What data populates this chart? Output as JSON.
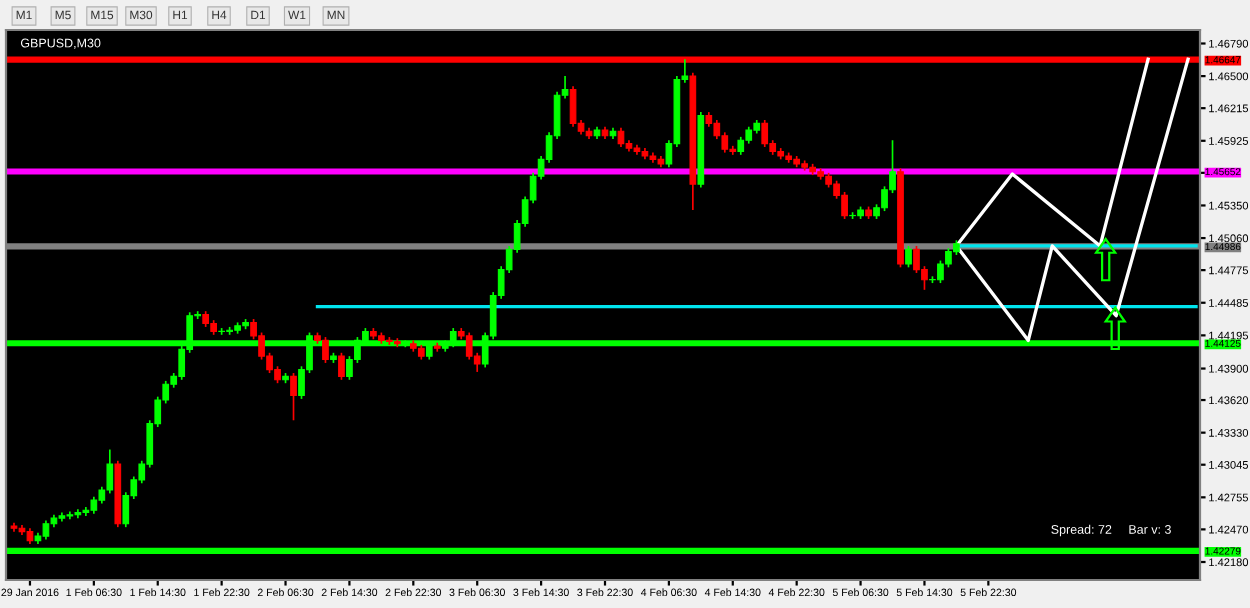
{
  "chart_data": {
    "type": "candlestick",
    "title": "GBPUSD,M30",
    "categories": [
      null,
      null,
      "29 Jan 2016",
      null,
      null,
      null,
      null,
      null,
      null,
      null,
      "1 Feb 06:30",
      null,
      null,
      null,
      null,
      null,
      null,
      null,
      "1 Feb 14:30",
      null,
      null,
      null,
      null,
      null,
      null,
      null,
      "1 Feb 22:30",
      null,
      null,
      null,
      null,
      null,
      null,
      null,
      "2 Feb 06:30",
      null,
      null,
      null,
      null,
      null,
      null,
      null,
      "2 Feb 14:30",
      null,
      null,
      null,
      null,
      null,
      null,
      null,
      "2 Feb 22:30",
      null,
      null,
      null,
      null,
      null,
      null,
      null,
      "3 Feb 06:30",
      null,
      null,
      null,
      null,
      null,
      null,
      null,
      "3 Feb 14:30",
      null,
      null,
      null,
      null,
      null,
      null,
      null,
      "3 Feb 22:30",
      null,
      null,
      null,
      null,
      null,
      null,
      null,
      "4 Feb 06:30",
      null,
      null,
      null,
      null,
      null,
      null,
      null,
      "4 Feb 14:30",
      null,
      null,
      null,
      null,
      null,
      null,
      null,
      "4 Feb 22:30",
      null,
      null,
      null,
      null,
      null,
      null,
      null,
      "5 Feb 06:30",
      null,
      null,
      null,
      null,
      null,
      null,
      null,
      "5 Feb 14:30",
      null,
      null,
      null,
      null,
      null,
      null,
      null,
      "5 Feb 22:30",
      null,
      null,
      null,
      null,
      null,
      null,
      null,
      null,
      null,
      null,
      null,
      null,
      null,
      null,
      null,
      null,
      null,
      null,
      null,
      null,
      null,
      null,
      null,
      null,
      null,
      null
    ],
    "ohlc": [
      [
        1.425,
        1.4253,
        1.4245,
        1.4248
      ],
      [
        1.4248,
        1.4251,
        1.4242,
        1.4245
      ],
      [
        1.4245,
        1.4248,
        1.4234,
        1.4237
      ],
      [
        1.4237,
        1.4244,
        1.4234,
        1.4241
      ],
      [
        1.4241,
        1.4255,
        1.4238,
        1.4252
      ],
      [
        1.4252,
        1.426,
        1.4249,
        1.4257
      ],
      [
        1.4257,
        1.4262,
        1.4254,
        1.4259
      ],
      [
        1.4259,
        1.4263,
        1.4256,
        1.426
      ],
      [
        1.426,
        1.4265,
        1.4257,
        1.4262
      ],
      [
        1.4262,
        1.4267,
        1.4259,
        1.4264
      ],
      [
        1.4264,
        1.4276,
        1.4261,
        1.4273
      ],
      [
        1.4273,
        1.4285,
        1.427,
        1.4282
      ],
      [
        1.4282,
        1.4318,
        1.4279,
        1.4305
      ],
      [
        1.4305,
        1.4308,
        1.4249,
        1.4252
      ],
      [
        1.4252,
        1.428,
        1.4249,
        1.4277
      ],
      [
        1.4277,
        1.4294,
        1.4274,
        1.4291
      ],
      [
        1.4291,
        1.4308,
        1.4288,
        1.4305
      ],
      [
        1.4305,
        1.4344,
        1.4302,
        1.4341
      ],
      [
        1.4341,
        1.4365,
        1.4338,
        1.4362
      ],
      [
        1.4362,
        1.4379,
        1.4359,
        1.4376
      ],
      [
        1.4376,
        1.4386,
        1.4373,
        1.4383
      ],
      [
        1.4383,
        1.441,
        1.438,
        1.4407
      ],
      [
        1.4407,
        1.444,
        1.4404,
        1.4437
      ],
      [
        1.4437,
        1.4441,
        1.4434,
        1.4438
      ],
      [
        1.4438,
        1.4441,
        1.4427,
        1.443
      ],
      [
        1.443,
        1.4433,
        1.442,
        1.4423
      ],
      [
        1.4423,
        1.4426,
        1.442,
        1.4423
      ],
      [
        1.4423,
        1.4427,
        1.442,
        1.4424
      ],
      [
        1.4424,
        1.4431,
        1.4421,
        1.4428
      ],
      [
        1.4428,
        1.4434,
        1.4425,
        1.4431
      ],
      [
        1.4431,
        1.4434,
        1.4416,
        1.4419
      ],
      [
        1.4419,
        1.4422,
        1.4398,
        1.4401
      ],
      [
        1.4401,
        1.4404,
        1.4386,
        1.4389
      ],
      [
        1.4389,
        1.4392,
        1.4377,
        1.438
      ],
      [
        1.438,
        1.4386,
        1.4377,
        1.4383
      ],
      [
        1.4383,
        1.4386,
        1.4344,
        1.4366
      ],
      [
        1.4366,
        1.4392,
        1.4363,
        1.4389
      ],
      [
        1.4389,
        1.4422,
        1.4386,
        1.4419
      ],
      [
        1.4419,
        1.4422,
        1.4412,
        1.4415
      ],
      [
        1.4415,
        1.4418,
        1.4395,
        1.4398
      ],
      [
        1.4398,
        1.4404,
        1.4395,
        1.4401
      ],
      [
        1.4401,
        1.4404,
        1.438,
        1.4383
      ],
      [
        1.4383,
        1.4401,
        1.438,
        1.4398
      ],
      [
        1.4398,
        1.4418,
        1.4395,
        1.4415
      ],
      [
        1.4415,
        1.4426,
        1.4412,
        1.4423
      ],
      [
        1.4423,
        1.4426,
        1.4416,
        1.4419
      ],
      [
        1.4419,
        1.4422,
        1.4412,
        1.4415
      ],
      [
        1.4415,
        1.4418,
        1.4411,
        1.4414
      ],
      [
        1.4414,
        1.4417,
        1.4409,
        1.4412
      ],
      [
        1.4412,
        1.4415,
        1.4409,
        1.4412
      ],
      [
        1.4412,
        1.4415,
        1.4405,
        1.4408
      ],
      [
        1.4408,
        1.4411,
        1.4398,
        1.4401
      ],
      [
        1.4401,
        1.4413,
        1.4398,
        1.441
      ],
      [
        1.441,
        1.4413,
        1.4405,
        1.4408
      ],
      [
        1.4408,
        1.4415,
        1.4405,
        1.4412
      ],
      [
        1.4412,
        1.4426,
        1.4409,
        1.4423
      ],
      [
        1.4423,
        1.4426,
        1.4416,
        1.4419
      ],
      [
        1.4419,
        1.4422,
        1.4398,
        1.4401
      ],
      [
        1.4401,
        1.4404,
        1.4387,
        1.4394
      ],
      [
        1.4394,
        1.4422,
        1.4391,
        1.4419
      ],
      [
        1.4419,
        1.4458,
        1.4416,
        1.4455
      ],
      [
        1.4455,
        1.4481,
        1.4452,
        1.4478
      ],
      [
        1.4478,
        1.4499,
        1.4475,
        1.4496
      ],
      [
        1.4496,
        1.4522,
        1.4493,
        1.4519
      ],
      [
        1.4519,
        1.4543,
        1.4516,
        1.454
      ],
      [
        1.454,
        1.4564,
        1.4537,
        1.4561
      ],
      [
        1.4561,
        1.4579,
        1.4558,
        1.4576
      ],
      [
        1.4576,
        1.46,
        1.4573,
        1.4597
      ],
      [
        1.4597,
        1.4636,
        1.4594,
        1.4633
      ],
      [
        1.4633,
        1.465,
        1.463,
        1.4638
      ],
      [
        1.4638,
        1.4641,
        1.4605,
        1.4608
      ],
      [
        1.4608,
        1.4611,
        1.4598,
        1.4601
      ],
      [
        1.4601,
        1.4604,
        1.4594,
        1.4597
      ],
      [
        1.4597,
        1.4605,
        1.4594,
        1.4602
      ],
      [
        1.4602,
        1.4605,
        1.4594,
        1.4597
      ],
      [
        1.4597,
        1.4604,
        1.4594,
        1.4601
      ],
      [
        1.4601,
        1.4604,
        1.4587,
        1.459
      ],
      [
        1.459,
        1.4593,
        1.4583,
        1.4586
      ],
      [
        1.4586,
        1.4589,
        1.458,
        1.4583
      ],
      [
        1.4583,
        1.4586,
        1.4576,
        1.4579
      ],
      [
        1.4579,
        1.4582,
        1.4573,
        1.4576
      ],
      [
        1.4576,
        1.4579,
        1.4569,
        1.4572
      ],
      [
        1.4572,
        1.4593,
        1.4569,
        1.459
      ],
      [
        1.459,
        1.465,
        1.4587,
        1.4647
      ],
      [
        1.4647,
        1.4665,
        1.4644,
        1.465
      ],
      [
        1.465,
        1.4653,
        1.4531,
        1.4554
      ],
      [
        1.4554,
        1.4618,
        1.4551,
        1.4615
      ],
      [
        1.4615,
        1.4618,
        1.4605,
        1.4608
      ],
      [
        1.4608,
        1.4611,
        1.4594,
        1.4597
      ],
      [
        1.4597,
        1.46,
        1.4582,
        1.4585
      ],
      [
        1.4585,
        1.4588,
        1.458,
        1.4583
      ],
      [
        1.4583,
        1.4596,
        1.458,
        1.4593
      ],
      [
        1.4593,
        1.4605,
        1.459,
        1.4602
      ],
      [
        1.4602,
        1.4611,
        1.4599,
        1.4608
      ],
      [
        1.4608,
        1.4611,
        1.4587,
        1.459
      ],
      [
        1.459,
        1.4593,
        1.458,
        1.4583
      ],
      [
        1.4583,
        1.4586,
        1.4576,
        1.4579
      ],
      [
        1.4579,
        1.4582,
        1.4573,
        1.4576
      ],
      [
        1.4576,
        1.4579,
        1.4569,
        1.4572
      ],
      [
        1.4572,
        1.4575,
        1.4566,
        1.4569
      ],
      [
        1.4569,
        1.4572,
        1.4562,
        1.4565
      ],
      [
        1.4565,
        1.4568,
        1.4558,
        1.4561
      ],
      [
        1.4561,
        1.4564,
        1.4551,
        1.4554
      ],
      [
        1.4554,
        1.4557,
        1.4541,
        1.4544
      ],
      [
        1.4544,
        1.4547,
        1.4523,
        1.4526
      ],
      [
        1.4526,
        1.4529,
        1.4523,
        1.4526
      ],
      [
        1.4526,
        1.4534,
        1.4523,
        1.4531
      ],
      [
        1.4531,
        1.4534,
        1.4523,
        1.4526
      ],
      [
        1.4526,
        1.4536,
        1.4523,
        1.4533
      ],
      [
        1.4533,
        1.4552,
        1.453,
        1.4549
      ],
      [
        1.4549,
        1.4593,
        1.4546,
        1.4565
      ],
      [
        1.4565,
        1.4568,
        1.448,
        1.4483
      ],
      [
        1.4483,
        1.4499,
        1.448,
        1.4496
      ],
      [
        1.4496,
        1.4499,
        1.4475,
        1.4478
      ],
      [
        1.4478,
        1.4481,
        1.446,
        1.4469
      ],
      [
        1.4469,
        1.4472,
        1.4466,
        1.4469
      ],
      [
        1.4469,
        1.4486,
        1.4466,
        1.4483
      ],
      [
        1.4483,
        1.4497,
        1.448,
        1.4494
      ],
      [
        1.4494,
        1.4504,
        1.4491,
        1.4501
      ],
      null,
      null,
      null,
      null,
      null,
      null,
      null,
      null,
      null,
      null,
      null,
      null,
      null,
      null,
      null,
      null,
      null,
      null,
      null,
      null,
      null,
      null,
      null,
      null,
      null,
      null,
      null,
      null,
      null,
      null
    ],
    "colors": [
      "#ff0000",
      "#ff0000",
      "#ff0000",
      "#00ff00",
      "#00ff00",
      "#00ff00",
      "#00ff00",
      "#00ff00",
      "#00ff00",
      "#00ff00",
      "#00ff00",
      "#00ff00",
      "#00ff00",
      "#ff0000",
      "#00ff00",
      "#00ff00",
      "#00ff00",
      "#00ff00",
      "#00ff00",
      "#00ff00",
      "#00ff00",
      "#00ff00",
      "#00ff00",
      "#00ff00",
      "#ff0000",
      "#ff0000",
      "#00ff00",
      "#00ff00",
      "#00ff00",
      "#00ff00",
      "#ff0000",
      "#ff0000",
      "#ff0000",
      "#ff0000",
      "#00ff00",
      "#ff0000",
      "#00ff00",
      "#00ff00",
      "#ff0000",
      "#ff0000",
      "#00ff00",
      "#ff0000",
      "#00ff00",
      "#00ff00",
      "#00ff00",
      "#ff0000",
      "#ff0000",
      "#ff0000",
      "#ff0000",
      "#00ff00",
      "#ff0000",
      "#ff0000",
      "#00ff00",
      "#ff0000",
      "#00ff00",
      "#00ff00",
      "#ff0000",
      "#ff0000",
      "#ff0000",
      "#00ff00",
      "#00ff00",
      "#00ff00",
      "#00ff00",
      "#00ff00",
      "#00ff00",
      "#00ff00",
      "#00ff00",
      "#00ff00",
      "#00ff00",
      "#00ff00",
      "#ff0000",
      "#ff0000",
      "#ff0000",
      "#00ff00",
      "#ff0000",
      "#00ff00",
      "#ff0000",
      "#ff0000",
      "#ff0000",
      "#ff0000",
      "#ff0000",
      "#ff0000",
      "#00ff00",
      "#00ff00",
      "#00ff00",
      "#ff0000",
      "#00ff00",
      "#ff0000",
      "#ff0000",
      "#ff0000",
      "#ff0000",
      "#00ff00",
      "#00ff00",
      "#00ff00",
      "#ff0000",
      "#ff0000",
      "#ff0000",
      "#ff0000",
      "#ff0000",
      "#ff0000",
      "#ff0000",
      "#ff0000",
      "#ff0000",
      "#ff0000",
      "#ff0000",
      "#00ff00",
      "#00ff00",
      "#ff0000",
      "#00ff00",
      "#00ff00",
      "#00ff00",
      "#ff0000",
      "#00ff00",
      "#ff0000",
      "#ff0000",
      "#00ff00",
      "#00ff00",
      "#00ff00",
      "#00ff00",
      null,
      null,
      null,
      null,
      null,
      null,
      null,
      null,
      null,
      null,
      null,
      null,
      null,
      null,
      null,
      null,
      null,
      null,
      null,
      null,
      null,
      null,
      null,
      null,
      null,
      null,
      null,
      null,
      null,
      null
    ],
    "series": [
      {
        "type": "line",
        "color": "#00e5ee",
        "values": [
          null,
          null,
          null,
          null,
          null,
          null,
          null,
          null,
          null,
          null,
          null,
          null,
          null,
          null,
          null,
          null,
          null,
          null,
          null,
          null,
          null,
          null,
          null,
          null,
          null,
          null,
          null,
          null,
          null,
          null,
          null,
          null,
          null,
          null,
          null,
          null,
          null,
          null,
          1.4445,
          null,
          null,
          null,
          null,
          null,
          null,
          null,
          null,
          null,
          null,
          null,
          null,
          null,
          null,
          null,
          null,
          null,
          null,
          null,
          null,
          null,
          null,
          null,
          null,
          null,
          null,
          null,
          null,
          null,
          null,
          null,
          null,
          null,
          null,
          null,
          null,
          null,
          null,
          null,
          null,
          null,
          null,
          null,
          null,
          null,
          null,
          null,
          null,
          null,
          null,
          null,
          null,
          null,
          null,
          null,
          null,
          null,
          null,
          null,
          null,
          null,
          null,
          null,
          null,
          null,
          null,
          null,
          null,
          null,
          null,
          null,
          null,
          null,
          null,
          null,
          null,
          null,
          null,
          null,
          null,
          null,
          null,
          null,
          null,
          null,
          null,
          null,
          null,
          null,
          null,
          null,
          null,
          null,
          null,
          null,
          null,
          null,
          null,
          null,
          null,
          null,
          null,
          null,
          null,
          null,
          null,
          null,
          null,
          null,
          1.4445
        ]
      },
      {
        "type": "line",
        "color": "#00e5ee",
        "values": [
          null,
          null,
          null,
          null,
          null,
          null,
          null,
          null,
          null,
          null,
          null,
          null,
          null,
          null,
          null,
          null,
          null,
          null,
          null,
          null,
          null,
          null,
          null,
          null,
          null,
          null,
          null,
          null,
          null,
          null,
          null,
          null,
          null,
          null,
          null,
          null,
          null,
          null,
          null,
          null,
          null,
          null,
          null,
          null,
          null,
          null,
          null,
          null,
          null,
          null,
          null,
          null,
          null,
          null,
          null,
          null,
          null,
          null,
          null,
          null,
          null,
          null,
          null,
          null,
          null,
          null,
          null,
          null,
          null,
          null,
          null,
          null,
          null,
          null,
          null,
          null,
          null,
          null,
          null,
          null,
          null,
          null,
          null,
          null,
          null,
          null,
          null,
          null,
          null,
          null,
          null,
          null,
          null,
          null,
          null,
          null,
          null,
          null,
          null,
          null,
          null,
          null,
          null,
          null,
          null,
          null,
          null,
          null,
          null,
          null,
          null,
          null,
          null,
          null,
          null,
          null,
          null,
          null,
          1.4499,
          null,
          null,
          null,
          null,
          null,
          null,
          null,
          null,
          null,
          null,
          null,
          null,
          null,
          null,
          null,
          null,
          null,
          null,
          null,
          null,
          null,
          null,
          null,
          null,
          null,
          null,
          null,
          null,
          null,
          1.4499
        ]
      },
      {
        "type": "line",
        "color": "#ffffff",
        "values": [
          null,
          null,
          null,
          null,
          null,
          null,
          null,
          null,
          null,
          null,
          null,
          null,
          null,
          null,
          null,
          null,
          null,
          null,
          null,
          null,
          null,
          null,
          null,
          null,
          null,
          null,
          null,
          null,
          null,
          null,
          null,
          null,
          null,
          null,
          null,
          null,
          null,
          null,
          null,
          null,
          null,
          null,
          null,
          null,
          null,
          null,
          null,
          null,
          null,
          null,
          null,
          null,
          null,
          null,
          null,
          null,
          null,
          null,
          null,
          null,
          null,
          null,
          null,
          null,
          null,
          null,
          null,
          null,
          null,
          null,
          null,
          null,
          null,
          null,
          null,
          null,
          null,
          null,
          null,
          null,
          null,
          null,
          null,
          null,
          null,
          null,
          null,
          null,
          null,
          null,
          null,
          null,
          null,
          null,
          null,
          null,
          null,
          null,
          null,
          null,
          null,
          null,
          null,
          null,
          null,
          null,
          null,
          null,
          null,
          null,
          null,
          null,
          null,
          null,
          null,
          null,
          null,
          null,
          1.4499,
          null,
          null,
          null,
          null,
          null,
          null,
          1.4563,
          null,
          null,
          null,
          null,
          null,
          null,
          null,
          null,
          null,
          null,
          1.4499,
          null,
          null,
          null,
          null,
          null,
          1.4665,
          null,
          null,
          null,
          null,
          null,
          null
        ]
      },
      {
        "type": "line",
        "color": "#ffffff",
        "values": [
          null,
          null,
          null,
          null,
          null,
          null,
          null,
          null,
          null,
          null,
          null,
          null,
          null,
          null,
          null,
          null,
          null,
          null,
          null,
          null,
          null,
          null,
          null,
          null,
          null,
          null,
          null,
          null,
          null,
          null,
          null,
          null,
          null,
          null,
          null,
          null,
          null,
          null,
          null,
          null,
          null,
          null,
          null,
          null,
          null,
          null,
          null,
          null,
          null,
          null,
          null,
          null,
          null,
          null,
          null,
          null,
          null,
          null,
          null,
          null,
          null,
          null,
          null,
          null,
          null,
          null,
          null,
          null,
          null,
          null,
          null,
          null,
          null,
          null,
          null,
          null,
          null,
          null,
          null,
          null,
          null,
          null,
          null,
          null,
          null,
          null,
          null,
          null,
          null,
          null,
          null,
          null,
          null,
          null,
          null,
          null,
          null,
          null,
          null,
          null,
          null,
          null,
          null,
          null,
          null,
          null,
          null,
          null,
          null,
          null,
          null,
          null,
          null,
          null,
          null,
          null,
          null,
          null,
          1.4499,
          null,
          null,
          null,
          null,
          null,
          null,
          null,
          null,
          1.4415,
          null,
          null,
          1.4499,
          null,
          null,
          null,
          null,
          null,
          null,
          null,
          1.4437,
          null,
          null,
          null,
          null,
          null,
          null,
          null,
          null,
          1.4665,
          null
        ]
      }
    ],
    "ref_lines": [
      {
        "axis": "y",
        "value": 1.46647,
        "label": "1.46647",
        "color": "#ff0000"
      },
      {
        "axis": "y",
        "value": 1.45652,
        "label": "1.45652",
        "color": "#ff00ff"
      },
      {
        "axis": "y",
        "value": 1.44986,
        "label": "1.44986",
        "color": "#808080"
      },
      {
        "axis": "y",
        "value": 1.44125,
        "label": "1.44125",
        "color": "#00ff00"
      },
      {
        "axis": "y",
        "value": 1.42279,
        "label": "1.42279",
        "color": "#00ff00"
      }
    ],
    "ylim": [
      1.4202,
      1.4691
    ],
    "yticks": [
      {
        "value": 1.4679,
        "label": "1.46790"
      },
      {
        "value": 1.465,
        "label": "1.46500"
      },
      {
        "value": 1.46215,
        "label": "1.46215"
      },
      {
        "value": 1.45925,
        "label": "1.45925"
      },
      {
        "value": 1.4564,
        "label": null
      },
      {
        "value": 1.4535,
        "label": "1.45350"
      },
      {
        "value": 1.4506,
        "label": "1.45060"
      },
      {
        "value": 1.44775,
        "label": "1.44775"
      },
      {
        "value": 1.44485,
        "label": "1.44485"
      },
      {
        "value": 1.44195,
        "label": "1.44195"
      },
      {
        "value": 1.439,
        "label": "1.43900"
      },
      {
        "value": 1.4362,
        "label": "1.43620"
      },
      {
        "value": 1.4333,
        "label": "1.43330"
      },
      {
        "value": 1.43045,
        "label": "1.43045"
      },
      {
        "value": 1.42755,
        "label": "1.42755"
      },
      {
        "value": 1.4247,
        "label": "1.42470"
      },
      {
        "value": 1.4218,
        "label": "1.42180"
      }
    ],
    "annotations": [
      "M1",
      "M5",
      "M15",
      "M30",
      "H1",
      "H4",
      "D1",
      "W1",
      "MN",
      "Spread: 72",
      "Bar v: 3"
    ]
  }
}
